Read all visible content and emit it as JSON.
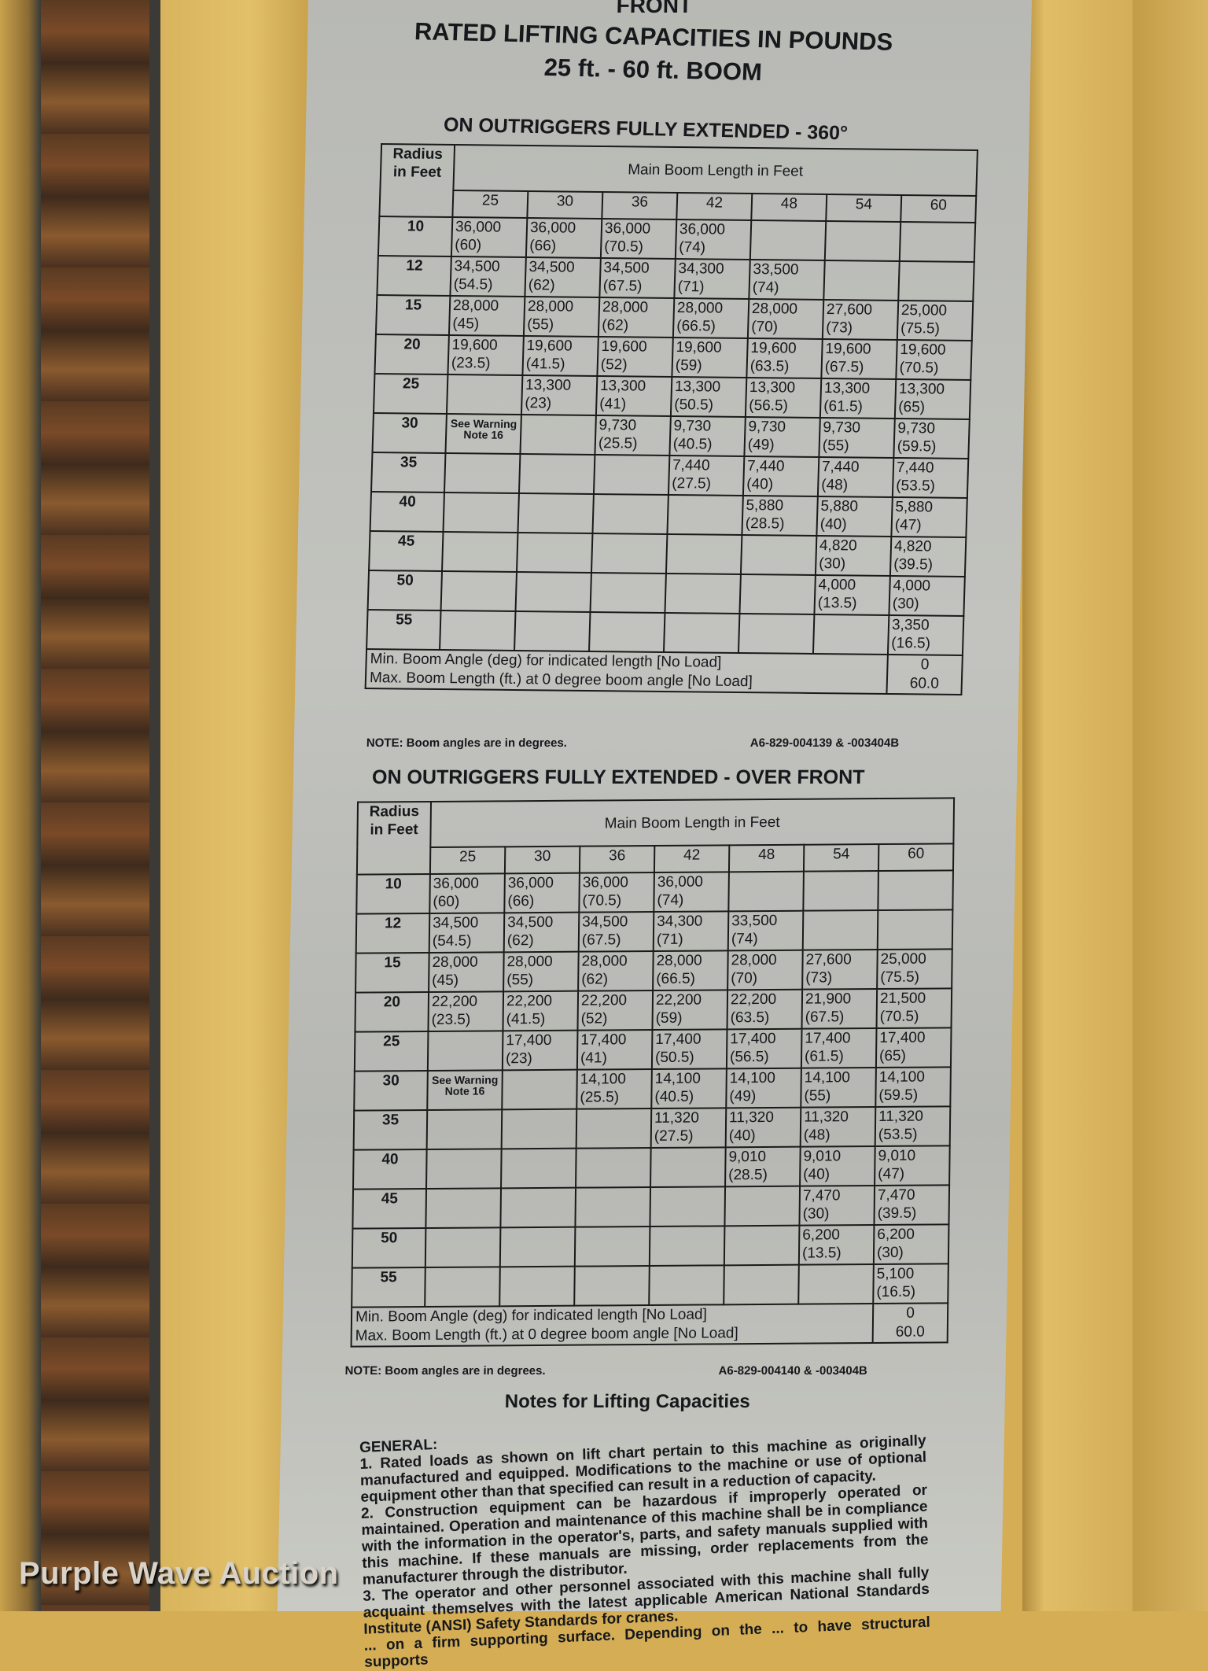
{
  "header": {
    "top_label": "FRONT",
    "title": "RATED LIFTING CAPACITIES IN POUNDS",
    "subtitle": "25 ft. - 60 ft. BOOM"
  },
  "boom_lengths": [
    "25",
    "30",
    "36",
    "42",
    "48",
    "54",
    "60"
  ],
  "table_labels": {
    "radius_header": "Radius in Feet",
    "boom_header": "Main Boom Length in Feet",
    "min_angle_label": "Min. Boom Angle (deg) for indicated length [No Load]",
    "max_length_label": "Max. Boom Length (ft.) at 0 degree boom angle [No Load]",
    "warning": "See Warning Note 16",
    "note": "NOTE: Boom angles are in degrees."
  },
  "tables": [
    {
      "heading": "ON OUTRIGGERS FULLY EXTENDED - 360°",
      "min_angle": "0",
      "max_length": "60.0",
      "ref": "A6-829-004139 & -003404B",
      "rows": [
        {
          "radius": "10",
          "cells": [
            [
              "36,000",
              "(60)"
            ],
            [
              "36,000",
              "(66)"
            ],
            [
              "36,000",
              "(70.5)"
            ],
            [
              "36,000",
              "(74)"
            ],
            [
              "",
              ""
            ],
            [
              "",
              ""
            ],
            [
              "",
              ""
            ]
          ]
        },
        {
          "radius": "12",
          "cells": [
            [
              "34,500",
              "(54.5)"
            ],
            [
              "34,500",
              "(62)"
            ],
            [
              "34,500",
              "(67.5)"
            ],
            [
              "34,300",
              "(71)"
            ],
            [
              "33,500",
              "(74)"
            ],
            [
              "",
              ""
            ],
            [
              "",
              ""
            ]
          ]
        },
        {
          "radius": "15",
          "cells": [
            [
              "28,000",
              "(45)"
            ],
            [
              "28,000",
              "(55)"
            ],
            [
              "28,000",
              "(62)"
            ],
            [
              "28,000",
              "(66.5)"
            ],
            [
              "28,000",
              "(70)"
            ],
            [
              "27,600",
              "(73)"
            ],
            [
              "25,000",
              "(75.5)"
            ]
          ]
        },
        {
          "radius": "20",
          "cells": [
            [
              "19,600",
              "(23.5)"
            ],
            [
              "19,600",
              "(41.5)"
            ],
            [
              "19,600",
              "(52)"
            ],
            [
              "19,600",
              "(59)"
            ],
            [
              "19,600",
              "(63.5)"
            ],
            [
              "19,600",
              "(67.5)"
            ],
            [
              "19,600",
              "(70.5)"
            ]
          ]
        },
        {
          "radius": "25",
          "cells": [
            [
              "",
              ""
            ],
            [
              "13,300",
              "(23)"
            ],
            [
              "13,300",
              "(41)"
            ],
            [
              "13,300",
              "(50.5)"
            ],
            [
              "13,300",
              "(56.5)"
            ],
            [
              "13,300",
              "(61.5)"
            ],
            [
              "13,300",
              "(65)"
            ]
          ]
        },
        {
          "radius": "30",
          "cells": [
            [
              "WARN",
              ""
            ],
            [
              "",
              ""
            ],
            [
              "9,730",
              "(25.5)"
            ],
            [
              "9,730",
              "(40.5)"
            ],
            [
              "9,730",
              "(49)"
            ],
            [
              "9,730",
              "(55)"
            ],
            [
              "9,730",
              "(59.5)"
            ]
          ]
        },
        {
          "radius": "35",
          "cells": [
            [
              "",
              ""
            ],
            [
              "",
              ""
            ],
            [
              "",
              ""
            ],
            [
              "7,440",
              "(27.5)"
            ],
            [
              "7,440",
              "(40)"
            ],
            [
              "7,440",
              "(48)"
            ],
            [
              "7,440",
              "(53.5)"
            ]
          ]
        },
        {
          "radius": "40",
          "cells": [
            [
              "",
              ""
            ],
            [
              "",
              ""
            ],
            [
              "",
              ""
            ],
            [
              "",
              ""
            ],
            [
              "5,880",
              "(28.5)"
            ],
            [
              "5,880",
              "(40)"
            ],
            [
              "5,880",
              "(47)"
            ]
          ]
        },
        {
          "radius": "45",
          "cells": [
            [
              "",
              ""
            ],
            [
              "",
              ""
            ],
            [
              "",
              ""
            ],
            [
              "",
              ""
            ],
            [
              "",
              ""
            ],
            [
              "4,820",
              "(30)"
            ],
            [
              "4,820",
              "(39.5)"
            ]
          ]
        },
        {
          "radius": "50",
          "cells": [
            [
              "",
              ""
            ],
            [
              "",
              ""
            ],
            [
              "",
              ""
            ],
            [
              "",
              ""
            ],
            [
              "",
              ""
            ],
            [
              "4,000",
              "(13.5)"
            ],
            [
              "4,000",
              "(30)"
            ]
          ]
        },
        {
          "radius": "55",
          "cells": [
            [
              "",
              ""
            ],
            [
              "",
              ""
            ],
            [
              "",
              ""
            ],
            [
              "",
              ""
            ],
            [
              "",
              ""
            ],
            [
              "",
              ""
            ],
            [
              "3,350",
              "(16.5)"
            ]
          ]
        }
      ]
    },
    {
      "heading": "ON OUTRIGGERS FULLY EXTENDED - OVER FRONT",
      "min_angle": "0",
      "max_length": "60.0",
      "ref": "A6-829-004140 & -003404B",
      "rows": [
        {
          "radius": "10",
          "cells": [
            [
              "36,000",
              "(60)"
            ],
            [
              "36,000",
              "(66)"
            ],
            [
              "36,000",
              "(70.5)"
            ],
            [
              "36,000",
              "(74)"
            ],
            [
              "",
              ""
            ],
            [
              "",
              ""
            ],
            [
              "",
              ""
            ]
          ]
        },
        {
          "radius": "12",
          "cells": [
            [
              "34,500",
              "(54.5)"
            ],
            [
              "34,500",
              "(62)"
            ],
            [
              "34,500",
              "(67.5)"
            ],
            [
              "34,300",
              "(71)"
            ],
            [
              "33,500",
              "(74)"
            ],
            [
              "",
              ""
            ],
            [
              "",
              ""
            ]
          ]
        },
        {
          "radius": "15",
          "cells": [
            [
              "28,000",
              "(45)"
            ],
            [
              "28,000",
              "(55)"
            ],
            [
              "28,000",
              "(62)"
            ],
            [
              "28,000",
              "(66.5)"
            ],
            [
              "28,000",
              "(70)"
            ],
            [
              "27,600",
              "(73)"
            ],
            [
              "25,000",
              "(75.5)"
            ]
          ]
        },
        {
          "radius": "20",
          "cells": [
            [
              "22,200",
              "(23.5)"
            ],
            [
              "22,200",
              "(41.5)"
            ],
            [
              "22,200",
              "(52)"
            ],
            [
              "22,200",
              "(59)"
            ],
            [
              "22,200",
              "(63.5)"
            ],
            [
              "21,900",
              "(67.5)"
            ],
            [
              "21,500",
              "(70.5)"
            ]
          ]
        },
        {
          "radius": "25",
          "cells": [
            [
              "",
              ""
            ],
            [
              "17,400",
              "(23)"
            ],
            [
              "17,400",
              "(41)"
            ],
            [
              "17,400",
              "(50.5)"
            ],
            [
              "17,400",
              "(56.5)"
            ],
            [
              "17,400",
              "(61.5)"
            ],
            [
              "17,400",
              "(65)"
            ]
          ]
        },
        {
          "radius": "30",
          "cells": [
            [
              "WARN",
              ""
            ],
            [
              "",
              ""
            ],
            [
              "14,100",
              "(25.5)"
            ],
            [
              "14,100",
              "(40.5)"
            ],
            [
              "14,100",
              "(49)"
            ],
            [
              "14,100",
              "(55)"
            ],
            [
              "14,100",
              "(59.5)"
            ]
          ]
        },
        {
          "radius": "35",
          "cells": [
            [
              "",
              ""
            ],
            [
              "",
              ""
            ],
            [
              "",
              ""
            ],
            [
              "11,320",
              "(27.5)"
            ],
            [
              "11,320",
              "(40)"
            ],
            [
              "11,320",
              "(48)"
            ],
            [
              "11,320",
              "(53.5)"
            ]
          ]
        },
        {
          "radius": "40",
          "cells": [
            [
              "",
              ""
            ],
            [
              "",
              ""
            ],
            [
              "",
              ""
            ],
            [
              "",
              ""
            ],
            [
              "9,010",
              "(28.5)"
            ],
            [
              "9,010",
              "(40)"
            ],
            [
              "9,010",
              "(47)"
            ]
          ]
        },
        {
          "radius": "45",
          "cells": [
            [
              "",
              ""
            ],
            [
              "",
              ""
            ],
            [
              "",
              ""
            ],
            [
              "",
              ""
            ],
            [
              "",
              ""
            ],
            [
              "7,470",
              "(30)"
            ],
            [
              "7,470",
              "(39.5)"
            ]
          ]
        },
        {
          "radius": "50",
          "cells": [
            [
              "",
              ""
            ],
            [
              "",
              ""
            ],
            [
              "",
              ""
            ],
            [
              "",
              ""
            ],
            [
              "",
              ""
            ],
            [
              "6,200",
              "(13.5)"
            ],
            [
              "6,200",
              "(30)"
            ]
          ]
        },
        {
          "radius": "55",
          "cells": [
            [
              "",
              ""
            ],
            [
              "",
              ""
            ],
            [
              "",
              ""
            ],
            [
              "",
              ""
            ],
            [
              "",
              ""
            ],
            [
              "",
              ""
            ],
            [
              "5,100",
              "(16.5)"
            ]
          ]
        }
      ]
    }
  ],
  "notes": {
    "title": "Notes for Lifting Capacities",
    "general_label": "GENERAL:",
    "lines": [
      "1. Rated loads as shown on lift chart pertain to this machine as originally manufactured and equipped. Modifications to the machine or use of optional equipment other than that specified can result in a reduction of capacity.",
      "2. Construction equipment can be hazardous if improperly operated or maintained. Operation and maintenance of this machine shall be in compliance with the information in the operator's, parts, and safety manuals supplied with this machine. If these manuals are missing, order replacements from the manufacturer through the distributor.",
      "3. The operator and other personnel associated with this machine shall fully acquaint themselves with the latest applicable American National Standards Institute (ANSI) Safety Standards for cranes.",
      "... on a firm supporting surface. Depending on the ... to have structural supports"
    ]
  },
  "watermark": "Purple Wave Auction"
}
